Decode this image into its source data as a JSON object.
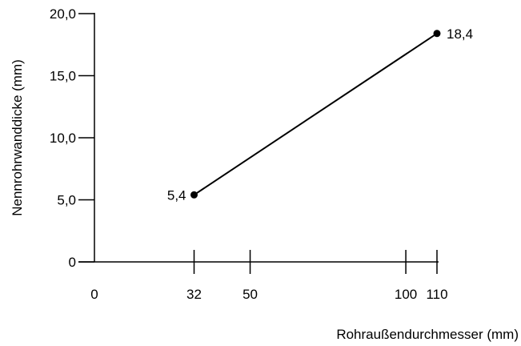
{
  "chart_data": {
    "type": "line",
    "title": "",
    "xlabel": "Rohraußendurchmesser (mm)",
    "ylabel": "Nennrohrwanddicke (mm)",
    "xlim": [
      0,
      110
    ],
    "ylim": [
      0,
      20
    ],
    "grid": false,
    "x_ticks": [
      {
        "value": 0,
        "label": "0"
      },
      {
        "value": 32,
        "label": "32"
      },
      {
        "value": 50,
        "label": "50"
      },
      {
        "value": 100,
        "label": "100"
      },
      {
        "value": 110,
        "label": "110"
      }
    ],
    "y_ticks": [
      {
        "value": 0,
        "label": "0"
      },
      {
        "value": 5,
        "label": "5,0"
      },
      {
        "value": 10,
        "label": "10,0"
      },
      {
        "value": 15,
        "label": "15,0"
      },
      {
        "value": 20,
        "label": "20,0"
      }
    ],
    "series": [
      {
        "points": [
          {
            "x": 32,
            "y": 5.4,
            "label": "5,4"
          },
          {
            "x": 110,
            "y": 18.4,
            "label": "18,4"
          }
        ]
      }
    ],
    "colors": {
      "line": "#000000",
      "axis": "#000000"
    }
  }
}
